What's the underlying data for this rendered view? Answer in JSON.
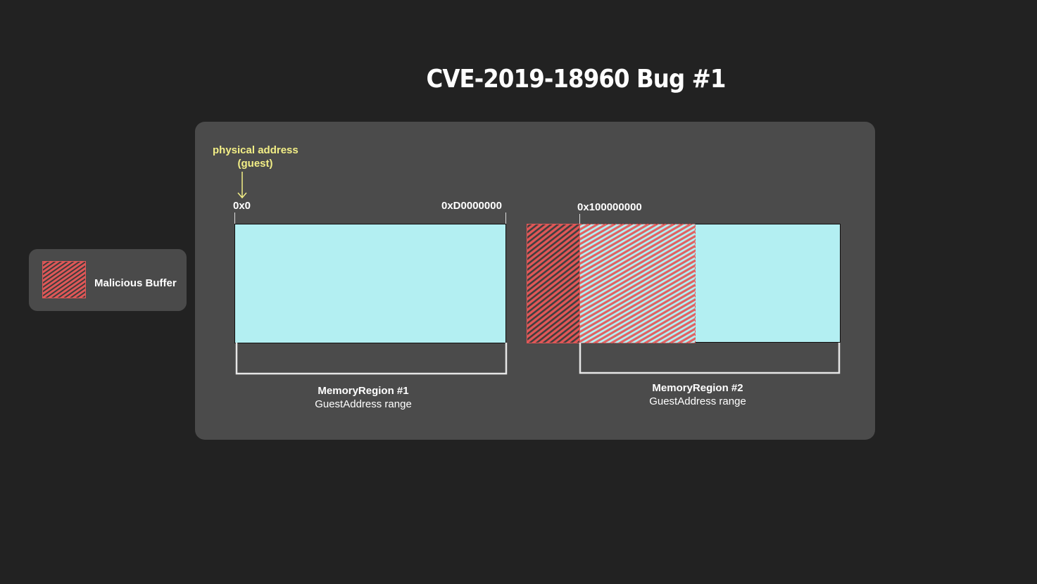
{
  "title": "CVE-2019-18960 Bug #1",
  "legend": {
    "label": "Malicious Buffer",
    "swatch_color": "#e05757"
  },
  "annotation": {
    "line1": "physical address",
    "line2": "(guest)"
  },
  "addresses": {
    "region1_start": "0x0",
    "region1_end": "0xD0000000",
    "region2_start": "0x100000000"
  },
  "regions": [
    {
      "name": "MemoryRegion #1",
      "range": "GuestAddress range"
    },
    {
      "name": "MemoryRegion #2",
      "range": "GuestAddress range"
    }
  ],
  "colors": {
    "background": "#222222",
    "panel": "#4b4b4b",
    "memory": "#b3eff2",
    "malicious": "#e05757",
    "annotation": "#f2ee86"
  }
}
